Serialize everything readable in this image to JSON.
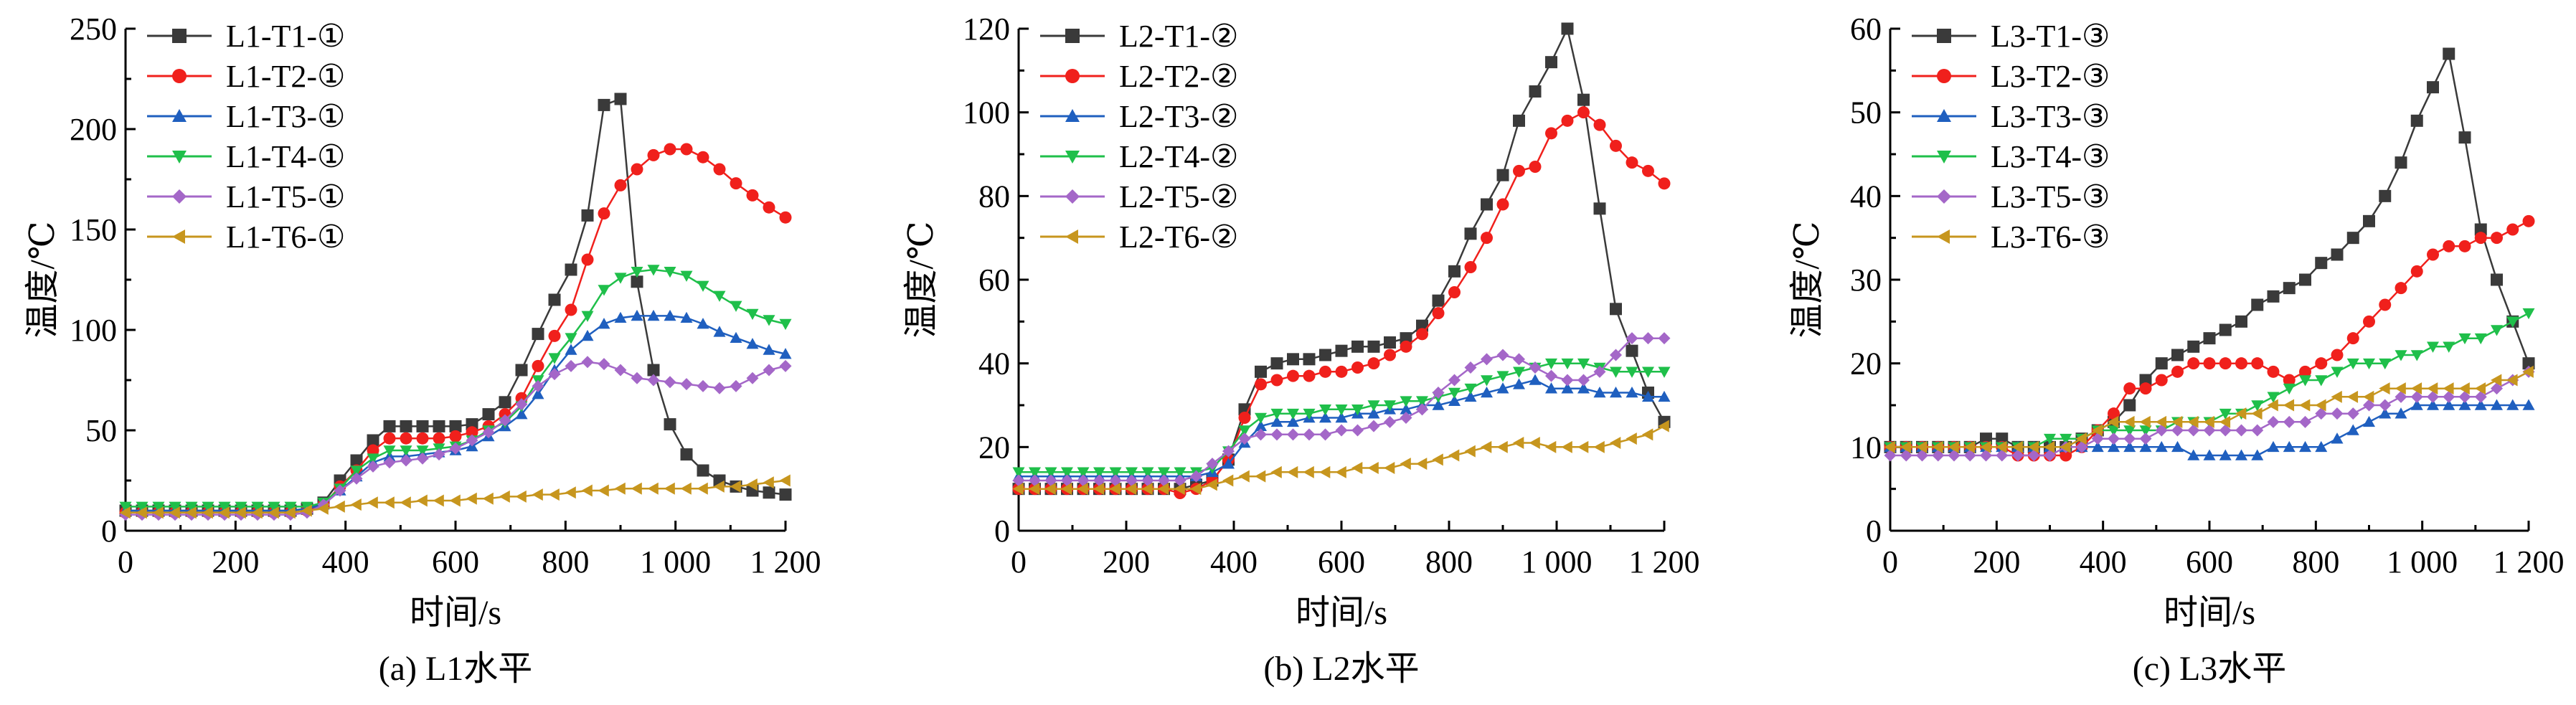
{
  "colors": {
    "T1": "#3a3a3a",
    "T2": "#f0201c",
    "T3": "#1f5fbf",
    "T4": "#1fbf4a",
    "T5": "#a467c8",
    "T6": "#c7961e"
  },
  "markers": {
    "T1": "square",
    "T2": "circle",
    "T3": "triangle-up",
    "T4": "triangle-down",
    "T5": "diamond",
    "T6": "triangle-left"
  },
  "chart_data": [
    {
      "type": "line",
      "caption": "(a) L1水平",
      "xlabel": "时间/s",
      "ylabel": "温度/℃",
      "xlim": [
        0,
        1200
      ],
      "ylim": [
        0,
        250
      ],
      "xticks": [
        0,
        200,
        400,
        600,
        800,
        1000,
        1200
      ],
      "xtick_labels": [
        "0",
        "200",
        "400",
        "600",
        "800",
        "1 000",
        "1 200"
      ],
      "yticks": [
        0,
        50,
        100,
        150,
        200,
        250
      ],
      "ytick_labels": [
        "0",
        "50",
        "100",
        "150",
        "200",
        "250"
      ],
      "legend_position": "top-left",
      "x": [
        0,
        30,
        60,
        90,
        120,
        150,
        180,
        210,
        240,
        270,
        300,
        330,
        360,
        390,
        420,
        450,
        480,
        510,
        540,
        570,
        600,
        630,
        660,
        690,
        720,
        750,
        780,
        810,
        840,
        870,
        900,
        930,
        960,
        990,
        1020,
        1050,
        1080,
        1110,
        1140,
        1170,
        1200
      ],
      "series": [
        {
          "key": "T1",
          "name": "L1-T1-①",
          "values": [
            10,
            10,
            10,
            10,
            10,
            10,
            10,
            10,
            10,
            10,
            10,
            11,
            14,
            25,
            35,
            45,
            52,
            52,
            52,
            52,
            52,
            53,
            58,
            64,
            80,
            98,
            115,
            130,
            157,
            212,
            215,
            124,
            80,
            53,
            38,
            30,
            25,
            22,
            20,
            19,
            18
          ]
        },
        {
          "key": "T2",
          "name": "L1-T2-①",
          "values": [
            9,
            9,
            9,
            9,
            9,
            9,
            9,
            9,
            9,
            9,
            9,
            10,
            13,
            22,
            30,
            40,
            46,
            46,
            46,
            46,
            47,
            49,
            52,
            58,
            66,
            82,
            97,
            110,
            135,
            158,
            172,
            180,
            187,
            190,
            190,
            186,
            180,
            173,
            167,
            161,
            156
          ]
        },
        {
          "key": "T3",
          "name": "L1-T3-①",
          "values": [
            10,
            10,
            10,
            10,
            10,
            10,
            10,
            10,
            10,
            10,
            10,
            11,
            13,
            20,
            27,
            34,
            37,
            37,
            38,
            39,
            40,
            42,
            47,
            52,
            58,
            68,
            80,
            90,
            97,
            103,
            106,
            107,
            107,
            107,
            106,
            103,
            99,
            96,
            93,
            90,
            88
          ]
        },
        {
          "key": "T4",
          "name": "L1-T4-①",
          "values": [
            12,
            12,
            12,
            12,
            12,
            12,
            12,
            12,
            12,
            12,
            12,
            12,
            14,
            21,
            30,
            36,
            40,
            40,
            40,
            41,
            42,
            45,
            50,
            54,
            62,
            75,
            86,
            96,
            107,
            120,
            126,
            129,
            130,
            129,
            127,
            122,
            117,
            112,
            108,
            105,
            103
          ]
        },
        {
          "key": "T5",
          "name": "L1-T5-①",
          "values": [
            8,
            8,
            8,
            8,
            8,
            8,
            8,
            8,
            8,
            8,
            8,
            9,
            13,
            20,
            26,
            32,
            34,
            35,
            36,
            38,
            41,
            45,
            49,
            55,
            63,
            72,
            78,
            82,
            84,
            83,
            80,
            76,
            75,
            74,
            73,
            72,
            71,
            72,
            76,
            80,
            82
          ]
        },
        {
          "key": "T6",
          "name": "L1-T6-①",
          "values": [
            9,
            9,
            9,
            9,
            9,
            9,
            9,
            9,
            9,
            9,
            9,
            10,
            11,
            12,
            13,
            14,
            14,
            14,
            15,
            15,
            15,
            16,
            16,
            17,
            17,
            18,
            18,
            19,
            20,
            20,
            21,
            21,
            21,
            21,
            21,
            21,
            22,
            22,
            23,
            24,
            25
          ]
        }
      ]
    },
    {
      "type": "line",
      "caption": "(b) L2水平",
      "xlabel": "时间/s",
      "ylabel": "温度/℃",
      "xlim": [
        0,
        1200
      ],
      "ylim": [
        0,
        120
      ],
      "xticks": [
        0,
        200,
        400,
        600,
        800,
        1000,
        1200
      ],
      "xtick_labels": [
        "0",
        "200",
        "400",
        "600",
        "800",
        "1 000",
        "1 200"
      ],
      "yticks": [
        0,
        20,
        40,
        60,
        80,
        100,
        120
      ],
      "ytick_labels": [
        "0",
        "20",
        "40",
        "60",
        "80",
        "100",
        "120"
      ],
      "legend_position": "top-left",
      "x": [
        0,
        30,
        60,
        90,
        120,
        150,
        180,
        210,
        240,
        270,
        300,
        330,
        360,
        390,
        420,
        450,
        480,
        510,
        540,
        570,
        600,
        630,
        660,
        690,
        720,
        750,
        780,
        810,
        840,
        870,
        900,
        930,
        960,
        990,
        1020,
        1050,
        1080,
        1110,
        1140,
        1170,
        1200
      ],
      "series": [
        {
          "key": "T1",
          "name": "L2-T1-②",
          "values": [
            10,
            10,
            10,
            10,
            10,
            10,
            10,
            10,
            10,
            10,
            10,
            11,
            12,
            17,
            29,
            38,
            40,
            41,
            41,
            42,
            43,
            44,
            44,
            45,
            46,
            49,
            55,
            62,
            71,
            78,
            85,
            98,
            105,
            112,
            120,
            103,
            77,
            53,
            43,
            33,
            26
          ]
        },
        {
          "key": "T2",
          "name": "L2-T2-②",
          "values": [
            10,
            10,
            10,
            10,
            10,
            10,
            10,
            10,
            10,
            10,
            9,
            10,
            12,
            17,
            27,
            35,
            36,
            37,
            37,
            38,
            38,
            39,
            40,
            42,
            44,
            47,
            52,
            57,
            63,
            70,
            78,
            86,
            87,
            95,
            98,
            100,
            97,
            92,
            88,
            86,
            83
          ]
        },
        {
          "key": "T3",
          "name": "L2-T3-②",
          "values": [
            13,
            13,
            13,
            13,
            13,
            13,
            13,
            13,
            13,
            13,
            13,
            13,
            14,
            16,
            21,
            25,
            26,
            26,
            27,
            27,
            27,
            28,
            28,
            29,
            29,
            30,
            30,
            31,
            32,
            33,
            34,
            35,
            36,
            34,
            34,
            34,
            33,
            33,
            33,
            32,
            32
          ]
        },
        {
          "key": "T4",
          "name": "L2-T4-②",
          "values": [
            14,
            14,
            14,
            14,
            14,
            14,
            14,
            14,
            14,
            14,
            14,
            14,
            15,
            19,
            24,
            27,
            28,
            28,
            28,
            29,
            29,
            29,
            30,
            30,
            31,
            31,
            32,
            33,
            34,
            36,
            37,
            38,
            39,
            40,
            40,
            40,
            39,
            38,
            38,
            38,
            38
          ]
        },
        {
          "key": "T5",
          "name": "L2-T5-②",
          "values": [
            12,
            12,
            12,
            12,
            12,
            12,
            12,
            12,
            12,
            12,
            12,
            13,
            16,
            19,
            22,
            23,
            23,
            23,
            23,
            23,
            24,
            24,
            25,
            26,
            27,
            29,
            33,
            36,
            39,
            41,
            42,
            41,
            39,
            37,
            36,
            36,
            38,
            42,
            46,
            46,
            46
          ]
        },
        {
          "key": "T6",
          "name": "L2-T6-②",
          "values": [
            10,
            10,
            10,
            10,
            10,
            10,
            10,
            10,
            10,
            10,
            10,
            10,
            11,
            12,
            13,
            13,
            14,
            14,
            14,
            14,
            14,
            15,
            15,
            15,
            16,
            16,
            17,
            18,
            19,
            20,
            20,
            21,
            21,
            20,
            20,
            20,
            20,
            21,
            22,
            23,
            25
          ]
        }
      ]
    },
    {
      "type": "line",
      "caption": "(c) L3水平",
      "xlabel": "时间/s",
      "ylabel": "温度/℃",
      "xlim": [
        0,
        1200
      ],
      "ylim": [
        0,
        60
      ],
      "xticks": [
        0,
        200,
        400,
        600,
        800,
        1000,
        1200
      ],
      "xtick_labels": [
        "0",
        "200",
        "400",
        "600",
        "800",
        "1 000",
        "1 200"
      ],
      "yticks": [
        0,
        10,
        20,
        30,
        40,
        50,
        60
      ],
      "ytick_labels": [
        "0",
        "10",
        "20",
        "30",
        "40",
        "50",
        "60"
      ],
      "legend_position": "top-left",
      "x": [
        0,
        30,
        60,
        90,
        120,
        150,
        180,
        210,
        240,
        270,
        300,
        330,
        360,
        390,
        420,
        450,
        480,
        510,
        540,
        570,
        600,
        630,
        660,
        690,
        720,
        750,
        780,
        810,
        840,
        870,
        900,
        930,
        960,
        990,
        1020,
        1050,
        1080,
        1110,
        1140,
        1170,
        1200
      ],
      "series": [
        {
          "key": "T1",
          "name": "L3-T1-③",
          "values": [
            10,
            10,
            10,
            10,
            10,
            10,
            11,
            11,
            10,
            10,
            10,
            10,
            11,
            12,
            13,
            15,
            18,
            20,
            21,
            22,
            23,
            24,
            25,
            27,
            28,
            29,
            30,
            32,
            33,
            35,
            37,
            40,
            44,
            49,
            53,
            57,
            47,
            36,
            30,
            25,
            20
          ]
        },
        {
          "key": "T2",
          "name": "L3-T2-③",
          "values": [
            10,
            10,
            10,
            10,
            10,
            10,
            10,
            10,
            9,
            9,
            9,
            9,
            10,
            12,
            14,
            17,
            17,
            18,
            19,
            20,
            20,
            20,
            20,
            20,
            19,
            18,
            19,
            20,
            21,
            23,
            25,
            27,
            29,
            31,
            33,
            34,
            34,
            35,
            35,
            36,
            37
          ]
        },
        {
          "key": "T3",
          "name": "L3-T3-③",
          "values": [
            10,
            10,
            10,
            10,
            10,
            10,
            10,
            10,
            10,
            10,
            10,
            10,
            10,
            10,
            10,
            10,
            10,
            10,
            10,
            9,
            9,
            9,
            9,
            9,
            10,
            10,
            10,
            10,
            11,
            12,
            13,
            14,
            14,
            15,
            15,
            15,
            15,
            15,
            15,
            15,
            15
          ]
        },
        {
          "key": "T4",
          "name": "L3-T4-③",
          "values": [
            10,
            10,
            10,
            10,
            10,
            10,
            10,
            10,
            10,
            10,
            11,
            11,
            11,
            12,
            12,
            12,
            12,
            12,
            13,
            13,
            13,
            14,
            14,
            15,
            16,
            17,
            18,
            18,
            19,
            20,
            20,
            20,
            21,
            21,
            22,
            22,
            23,
            23,
            24,
            25,
            26
          ]
        },
        {
          "key": "T5",
          "name": "L3-T5-③",
          "values": [
            9,
            9,
            9,
            9,
            9,
            9,
            9,
            9,
            9,
            9,
            9,
            10,
            10,
            11,
            11,
            11,
            11,
            12,
            12,
            12,
            12,
            12,
            12,
            12,
            13,
            13,
            13,
            14,
            14,
            14,
            15,
            15,
            16,
            16,
            16,
            16,
            16,
            16,
            17,
            18,
            19
          ]
        },
        {
          "key": "T6",
          "name": "L3-T6-③",
          "values": [
            10,
            10,
            10,
            10,
            10,
            10,
            10,
            10,
            10,
            10,
            10,
            10,
            11,
            12,
            13,
            13,
            13,
            13,
            13,
            13,
            13,
            13,
            14,
            14,
            15,
            15,
            15,
            15,
            16,
            16,
            16,
            17,
            17,
            17,
            17,
            17,
            17,
            17,
            18,
            18,
            19
          ]
        }
      ]
    }
  ]
}
